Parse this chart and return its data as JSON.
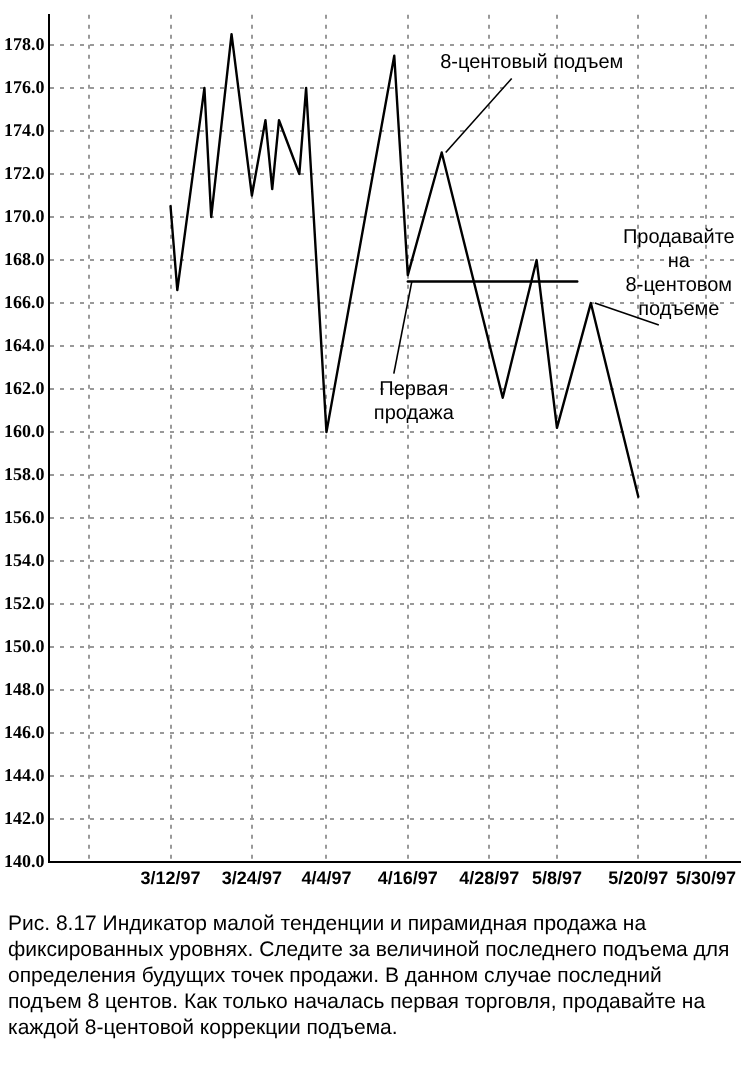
{
  "chart_data": {
    "type": "line",
    "x": [
      "1997-03-12",
      "1997-03-13",
      "1997-03-17",
      "1997-03-18",
      "1997-03-21",
      "1997-03-24",
      "1997-03-26",
      "1997-03-27",
      "1997-03-28",
      "1997-03-31",
      "1997-04-01",
      "1997-04-04",
      "1997-04-14",
      "1997-04-16",
      "1997-04-21",
      "1997-04-30",
      "1997-05-05",
      "1997-05-08",
      "1997-05-13",
      "1997-05-20"
    ],
    "series": [
      {
        "color": "#000000",
        "values": [
          170.5,
          166.6,
          176,
          170,
          178.5,
          171,
          174.5,
          171.3,
          174.5,
          172,
          176,
          160,
          177.5,
          167.3,
          173,
          161.6,
          168,
          160.2,
          166,
          157
        ]
      },
      {
        "color": "#000000",
        "x": [
          "1997-04-16",
          "1997-05-11"
        ],
        "values": [
          167,
          167
        ]
      }
    ],
    "xlim": [
      "1997-02-22",
      "1997-06-04"
    ],
    "xticks": [
      {
        "value": "1997-02-28",
        "label": null
      },
      {
        "value": "1997-03-12",
        "label": "3/12/97"
      },
      {
        "value": "1997-03-24",
        "label": "3/24/97"
      },
      {
        "value": "1997-04-04",
        "label": "4/4/97"
      },
      {
        "value": "1997-04-16",
        "label": "4/16/97"
      },
      {
        "value": "1997-04-28",
        "label": "4/28/97"
      },
      {
        "value": "1997-05-08",
        "label": "5/8/97"
      },
      {
        "value": "1997-05-20",
        "label": "5/20/97"
      },
      {
        "value": "1997-05-30",
        "label": "5/30/97"
      }
    ],
    "ylim": [
      140,
      179.4
    ],
    "yticks": [
      {
        "value": 140,
        "label": "140.0"
      },
      {
        "value": 142,
        "label": "142.0"
      },
      {
        "value": 144,
        "label": "144.0"
      },
      {
        "value": 146,
        "label": "146.0"
      },
      {
        "value": 148,
        "label": "148.0"
      },
      {
        "value": 150,
        "label": "150.0"
      },
      {
        "value": 152,
        "label": "152.0"
      },
      {
        "value": 154,
        "label": "154.0"
      },
      {
        "value": 156,
        "label": "156.0"
      },
      {
        "value": 158,
        "label": "158.0"
      },
      {
        "value": 160,
        "label": "160.0"
      },
      {
        "value": 162,
        "label": "162.0"
      },
      {
        "value": 164,
        "label": "164.0"
      },
      {
        "value": 166,
        "label": "166.0"
      },
      {
        "value": 168,
        "label": "168.0"
      },
      {
        "value": 170,
        "label": "170.0"
      },
      {
        "value": 172,
        "label": "172.0"
      },
      {
        "value": 174,
        "label": "174.0"
      },
      {
        "value": 176,
        "label": "176.0"
      },
      {
        "value": 178,
        "label": "178.0"
      }
    ],
    "grid": true,
    "marker": "none",
    "line_style": "solid",
    "annotations": [
      {
        "text": "8-центовый подъем",
        "x": "1997-04-21",
        "y": 173
      },
      {
        "text": "Продавайте на 8-центовом подъеме",
        "x": "1997-05-13",
        "y": 166
      },
      {
        "text": "Первая продажа",
        "x": "1997-04-16",
        "y": 167
      },
      "Рис. 8.17 Индикатор малой тенденции и пирамидная продажа на фиксированных уровнях. Следите за величиной последнего подъема для определения будущих точек продажи. В данном случае последний подъем 8 центов. Как только началась первая торговля, продавайте на каждой 8-центовой коррекции подъема."
    ]
  }
}
